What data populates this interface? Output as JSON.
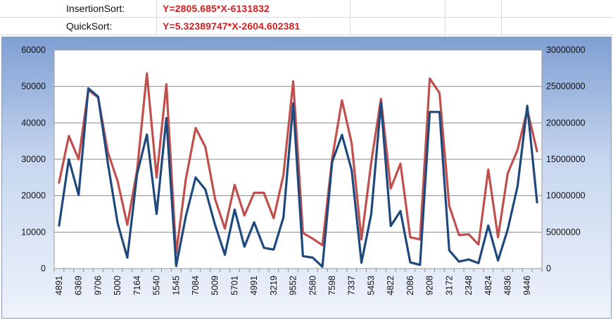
{
  "formulas": [
    {
      "name": "InsertionSort:",
      "formula": "Y=2805.685*X-6131832"
    },
    {
      "name": "QuickSort:",
      "formula": "Y=5.32389747*X-2604.602381"
    }
  ],
  "chart_data": {
    "type": "line",
    "title": "",
    "xlabel": "",
    "ylabel": "",
    "grid": true,
    "legend": "none",
    "ylim_left": [
      0,
      60000
    ],
    "ylim_right": [
      0,
      30000000
    ],
    "left_ticks": [
      "0",
      "10000",
      "20000",
      "30000",
      "40000",
      "50000",
      "60000"
    ],
    "right_ticks": [
      "0",
      "5000000",
      "10000000",
      "15000000",
      "20000000",
      "25000000",
      "30000000"
    ],
    "categories": [
      "4891",
      "",
      "6369",
      "",
      "9706",
      "",
      "5000",
      "",
      "7164",
      "",
      "5540",
      "",
      "1545",
      "",
      "7084",
      "",
      "5009",
      "",
      "5701",
      "",
      "4991",
      "",
      "3219",
      "",
      "9552",
      "",
      "2580",
      "",
      "7598",
      "",
      "7337",
      "",
      "5453",
      "",
      "4822",
      "",
      "2086",
      "",
      "9208",
      "",
      "3172",
      "",
      "2348",
      "",
      "4824",
      "",
      "4836",
      "",
      "9446",
      ""
    ],
    "series": [
      {
        "axis": "right",
        "color": "#c0504d",
        "values": [
          11800000,
          18200000,
          15000000,
          24500000,
          23500000,
          16000000,
          12000000,
          6000000,
          13500000,
          26800000,
          12500000,
          25300000,
          2000000,
          12300000,
          19300000,
          16700000,
          9500000,
          5500000,
          11500000,
          7300000,
          10400000,
          10400000,
          6900000,
          12800000,
          25700000,
          4900000,
          4100000,
          3200000,
          15100000,
          23100000,
          17200000,
          4000000,
          14600000,
          23300000,
          11000000,
          14400000,
          4300000,
          4000000,
          26100000,
          24100000,
          8600000,
          4600000,
          4700000,
          3300000,
          13600000,
          4300000,
          13100000,
          16300000,
          21800000,
          16100000
        ]
      },
      {
        "axis": "left",
        "color": "#1f497d",
        "values": [
          11800,
          30000,
          20200,
          49500,
          47200,
          29000,
          12500,
          3000,
          26000,
          36800,
          15000,
          41300,
          700,
          14400,
          25000,
          21700,
          11900,
          3800,
          16200,
          6000,
          12700,
          5700,
          5200,
          14000,
          45300,
          3400,
          3000,
          500,
          29300,
          36700,
          27000,
          1600,
          15000,
          45500,
          11700,
          15800,
          1700,
          1000,
          43000,
          43000,
          5000,
          1900,
          2500,
          1500,
          11800,
          2200,
          10800,
          22600,
          44700,
          18200
        ]
      }
    ]
  }
}
